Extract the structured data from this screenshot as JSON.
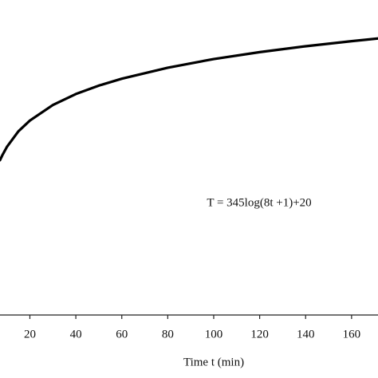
{
  "chart_data": {
    "type": "line",
    "x_label": "Time t (min)",
    "annotation": "T = 345log(8t +1)+20",
    "x": [
      7,
      8,
      10,
      15,
      20,
      30,
      40,
      50,
      60,
      80,
      100,
      120,
      140,
      160,
      172
    ],
    "series": [
      {
        "color": "#000000",
        "values": [
          626,
          645,
          678,
          739,
          781,
          842,
          885,
          918,
          945,
          988,
          1022,
          1049,
          1072,
          1092,
          1103
        ]
      }
    ],
    "xlim": [
      7,
      171.5
    ],
    "xticks": [
      20,
      40,
      60,
      80,
      100,
      120,
      140,
      160
    ],
    "ylim": [
      20,
      1200
    ]
  }
}
